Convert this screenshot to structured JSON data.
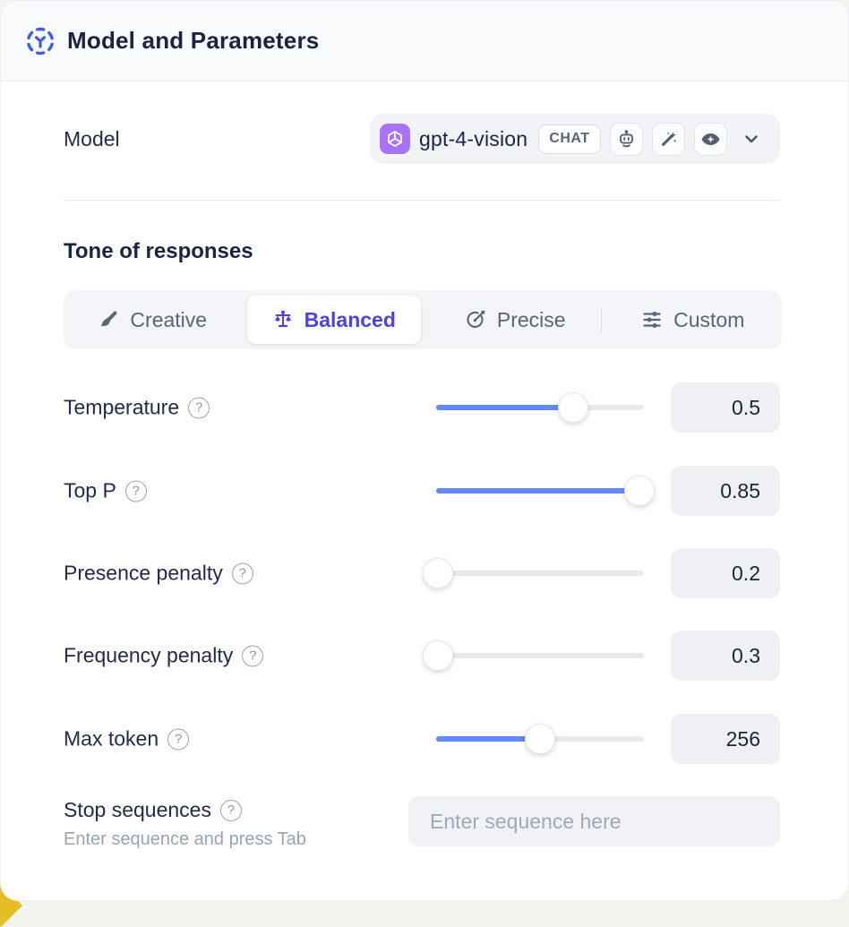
{
  "header": {
    "title": "Model and Parameters"
  },
  "model": {
    "label": "Model",
    "name": "gpt-4-vision",
    "type_badge": "CHAT",
    "capability_icons": [
      "robot-icon",
      "magic-wand-icon",
      "vision-eye-icon"
    ],
    "provider_icon": "openai-icon"
  },
  "tone": {
    "heading": "Tone of responses",
    "options": [
      {
        "label": "Creative",
        "icon": "paintbrush-icon",
        "selected": false
      },
      {
        "label": "Balanced",
        "icon": "balance-scale-icon",
        "selected": true
      },
      {
        "label": "Precise",
        "icon": "target-arrow-icon",
        "selected": false
      },
      {
        "label": "Custom",
        "icon": "sliders-icon",
        "selected": false
      }
    ]
  },
  "parameters": [
    {
      "label": "Temperature",
      "value": "0.5",
      "fill_pct": 66
    },
    {
      "label": "Top P",
      "value": "0.85",
      "fill_pct": 98
    },
    {
      "label": "Presence penalty",
      "value": "0.2",
      "fill_pct": 1
    },
    {
      "label": "Frequency penalty",
      "value": "0.3",
      "fill_pct": 1
    },
    {
      "label": "Max token",
      "value": "256",
      "fill_pct": 50
    }
  ],
  "stop": {
    "label": "Stop sequences",
    "hint": "Enter sequence and press Tab",
    "placeholder": "Enter sequence here"
  },
  "help_glyph": "?",
  "colors": {
    "accent_indigo": "#4c43dd",
    "slider_blue": "#6488f7",
    "openai_purple": "#a873f6",
    "header_bg": "#f8fafc",
    "field_bg": "#f1f3f7",
    "corner_accent_yellow": "#e3bf25"
  }
}
